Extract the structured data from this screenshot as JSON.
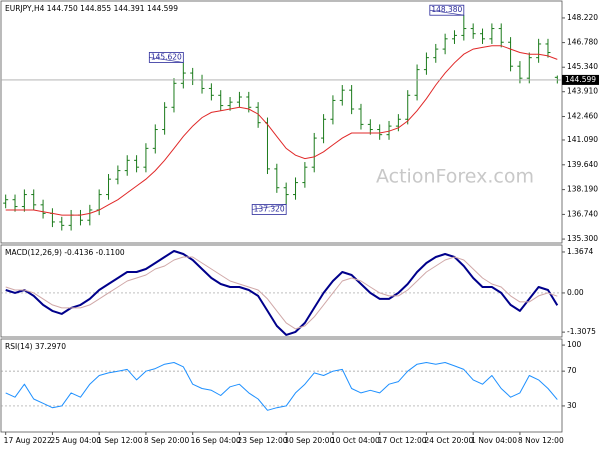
{
  "chart_data": [
    {
      "type": "ohlc",
      "title": "EURJPY,H4 144.750 144.855 144.391 144.599",
      "watermark": "ActionForex.com",
      "color": "#1a7a1a",
      "xlim": [
        -0.5,
        59.5
      ],
      "ylim": [
        135.07,
        149.21
      ],
      "yticks": [
        {
          "value": 135.3,
          "label": "135.300"
        },
        {
          "value": 136.74,
          "label": "136.740"
        },
        {
          "value": 138.19,
          "label": "138.190"
        },
        {
          "value": 139.64,
          "label": "139.640"
        },
        {
          "value": 141.09,
          "label": "141.090"
        },
        {
          "value": 142.46,
          "label": "142.460"
        },
        {
          "value": 143.91,
          "label": "143.910"
        },
        {
          "value": 145.34,
          "label": "145.340"
        },
        {
          "value": 146.78,
          "label": "146.780"
        },
        {
          "value": 148.22,
          "label": "148.220"
        }
      ],
      "price_line": 144.599,
      "open": [
        137.4,
        137.6,
        137.2,
        137.9,
        137.3,
        136.8,
        136.3,
        136.1,
        136.7,
        136.4,
        137.0,
        137.9,
        138.8,
        139.3,
        139.9,
        139.5,
        140.6,
        141.7,
        143.0,
        144.4,
        145.0,
        144.6,
        144.1,
        143.7,
        143.1,
        143.3,
        143.6,
        143.0,
        142.1,
        139.4,
        138.3,
        137.9,
        138.6,
        139.5,
        141.2,
        142.3,
        143.4,
        144.0,
        142.9,
        142.0,
        141.7,
        141.4,
        141.9,
        142.3,
        143.7,
        145.2,
        145.9,
        146.4,
        147.0,
        147.2,
        147.6,
        147.3,
        147.0,
        147.6,
        146.8,
        145.4,
        144.7,
        145.9,
        146.7,
        144.75
      ],
      "high": [
        137.9,
        137.9,
        138.2,
        138.2,
        137.6,
        137.1,
        136.6,
        137.0,
        137.0,
        137.3,
        138.2,
        139.1,
        139.6,
        140.2,
        140.2,
        140.9,
        142.0,
        143.3,
        144.7,
        145.62,
        145.3,
        144.9,
        144.4,
        144.0,
        143.6,
        143.9,
        143.9,
        143.3,
        142.4,
        139.7,
        138.6,
        138.9,
        139.8,
        141.5,
        142.6,
        143.7,
        144.3,
        144.3,
        143.2,
        142.3,
        142.0,
        142.2,
        142.6,
        144.0,
        145.5,
        146.2,
        146.7,
        147.3,
        147.5,
        148.38,
        147.9,
        147.6,
        147.9,
        147.9,
        147.1,
        145.7,
        146.2,
        147.0,
        147.0,
        144.855
      ],
      "low": [
        137.1,
        136.9,
        136.9,
        137.0,
        136.5,
        136.0,
        135.8,
        135.8,
        136.1,
        136.1,
        136.7,
        137.6,
        138.5,
        139.0,
        139.2,
        139.2,
        140.3,
        141.4,
        142.7,
        144.1,
        144.3,
        143.8,
        143.4,
        142.8,
        142.8,
        143.0,
        142.7,
        141.8,
        139.1,
        138.0,
        137.32,
        137.6,
        138.3,
        139.2,
        140.9,
        142.0,
        143.1,
        142.6,
        141.7,
        141.4,
        141.1,
        141.1,
        141.6,
        142.0,
        143.4,
        144.9,
        145.6,
        146.1,
        146.7,
        146.9,
        147.0,
        146.7,
        146.7,
        146.5,
        145.1,
        144.4,
        144.4,
        145.6,
        145.9,
        144.391
      ],
      "close": [
        137.6,
        137.2,
        137.9,
        137.3,
        136.8,
        136.3,
        136.1,
        136.7,
        136.4,
        137.0,
        137.9,
        138.8,
        139.3,
        139.9,
        139.5,
        140.6,
        141.7,
        143.0,
        144.4,
        145.0,
        144.6,
        144.1,
        143.7,
        143.1,
        143.3,
        143.6,
        143.0,
        142.1,
        139.4,
        138.3,
        137.9,
        138.6,
        139.5,
        141.2,
        142.3,
        143.4,
        144.0,
        142.9,
        142.0,
        141.7,
        141.4,
        141.9,
        142.3,
        143.7,
        145.2,
        145.9,
        146.4,
        147.0,
        147.2,
        147.6,
        147.3,
        147.0,
        147.6,
        146.8,
        145.4,
        144.7,
        145.9,
        146.7,
        146.2,
        144.599
      ],
      "moving_average": {
        "color": "#e02828",
        "values": [
          137.0,
          137.0,
          137.0,
          137.0,
          136.9,
          136.8,
          136.7,
          136.7,
          136.7,
          136.8,
          137.0,
          137.3,
          137.6,
          138.0,
          138.4,
          138.8,
          139.3,
          139.9,
          140.6,
          141.3,
          141.9,
          142.4,
          142.7,
          142.8,
          142.9,
          143.0,
          142.9,
          142.6,
          142.0,
          141.3,
          140.6,
          140.2,
          140.0,
          140.1,
          140.4,
          140.8,
          141.2,
          141.5,
          141.5,
          141.5,
          141.5,
          141.6,
          141.8,
          142.2,
          142.8,
          143.5,
          144.3,
          145.0,
          145.6,
          146.1,
          146.4,
          146.5,
          146.6,
          146.6,
          146.4,
          146.2,
          146.1,
          146.1,
          146.0,
          145.8
        ]
      },
      "annotations": [
        {
          "value": 145.62,
          "label": "145.620",
          "x": 19
        },
        {
          "value": 137.32,
          "label": "137.320",
          "x": 30
        },
        {
          "value": 148.38,
          "label": "148.380",
          "x": 49
        }
      ]
    },
    {
      "type": "line",
      "title": "MACD(12,26,9) -0.4136 -0.1100",
      "xlim": [
        -0.5,
        59.5
      ],
      "ylim": [
        -1.47,
        1.6
      ],
      "yticks": [
        1.3674,
        {
          "value": 0,
          "label": "0.00"
        },
        -1.3075
      ],
      "levels": [
        0
      ],
      "series": [
        {
          "color": "#00008b",
          "width": 2,
          "values": [
            0.1,
            0.0,
            0.1,
            -0.1,
            -0.4,
            -0.6,
            -0.7,
            -0.5,
            -0.4,
            -0.2,
            0.1,
            0.3,
            0.5,
            0.7,
            0.7,
            0.8,
            1.0,
            1.2,
            1.4,
            1.3,
            1.1,
            0.8,
            0.5,
            0.3,
            0.2,
            0.2,
            0.1,
            -0.1,
            -0.6,
            -1.1,
            -1.4,
            -1.3,
            -1.0,
            -0.5,
            0.0,
            0.4,
            0.7,
            0.6,
            0.3,
            0.0,
            -0.2,
            -0.2,
            0.0,
            0.3,
            0.7,
            1.0,
            1.2,
            1.3,
            1.2,
            0.9,
            0.5,
            0.2,
            0.2,
            0.0,
            -0.4,
            -0.6,
            -0.2,
            0.2,
            0.1,
            -0.4136
          ]
        },
        {
          "color": "#d0a8a8",
          "width": 1,
          "values": [
            0.2,
            0.1,
            0.1,
            0.0,
            -0.2,
            -0.4,
            -0.5,
            -0.5,
            -0.5,
            -0.4,
            -0.2,
            0.0,
            0.2,
            0.4,
            0.5,
            0.6,
            0.8,
            0.9,
            1.1,
            1.2,
            1.2,
            1.0,
            0.8,
            0.6,
            0.4,
            0.3,
            0.2,
            0.1,
            -0.2,
            -0.6,
            -1.0,
            -1.2,
            -1.1,
            -0.8,
            -0.4,
            0.0,
            0.4,
            0.5,
            0.4,
            0.2,
            0.0,
            -0.1,
            -0.1,
            0.1,
            0.4,
            0.7,
            0.9,
            1.1,
            1.2,
            1.1,
            0.8,
            0.5,
            0.3,
            0.2,
            -0.1,
            -0.3,
            -0.3,
            -0.1,
            0.0,
            -0.11
          ]
        }
      ]
    },
    {
      "type": "line",
      "title": "RSI(14) 37.2970",
      "xlim": [
        -0.5,
        59.5
      ],
      "ylim": [
        0,
        107
      ],
      "yticks": [
        100,
        70,
        30
      ],
      "levels": [
        70,
        30
      ],
      "xticks": [
        {
          "value": 0,
          "label": "17 Aug 2022"
        },
        {
          "value": 5,
          "label": "25 Aug 04:00"
        },
        {
          "value": 10,
          "label": "1 Sep 12:00"
        },
        {
          "value": 15,
          "label": "8 Sep 20:00"
        },
        {
          "value": 20,
          "label": "16 Sep 04:00"
        },
        {
          "value": 25,
          "label": "23 Sep 12:00"
        },
        {
          "value": 30,
          "label": "30 Sep 20:00"
        },
        {
          "value": 35,
          "label": "10 Oct 04:00"
        },
        {
          "value": 40,
          "label": "17 Oct 12:00"
        },
        {
          "value": 45,
          "label": "24 Oct 20:00"
        },
        {
          "value": 50,
          "label": "1 Nov 04:00"
        },
        {
          "value": 55,
          "label": "8 Nov 12:00"
        }
      ],
      "series": [
        {
          "color": "#1e90ff",
          "width": 1,
          "values": [
            45,
            40,
            55,
            38,
            33,
            28,
            30,
            45,
            40,
            55,
            65,
            68,
            70,
            72,
            60,
            70,
            73,
            78,
            80,
            75,
            55,
            50,
            48,
            42,
            52,
            55,
            45,
            38,
            25,
            28,
            30,
            45,
            55,
            68,
            65,
            70,
            72,
            50,
            45,
            48,
            45,
            55,
            58,
            70,
            78,
            80,
            78,
            80,
            76,
            72,
            60,
            55,
            65,
            50,
            40,
            45,
            65,
            60,
            50,
            37.297
          ]
        }
      ]
    }
  ]
}
